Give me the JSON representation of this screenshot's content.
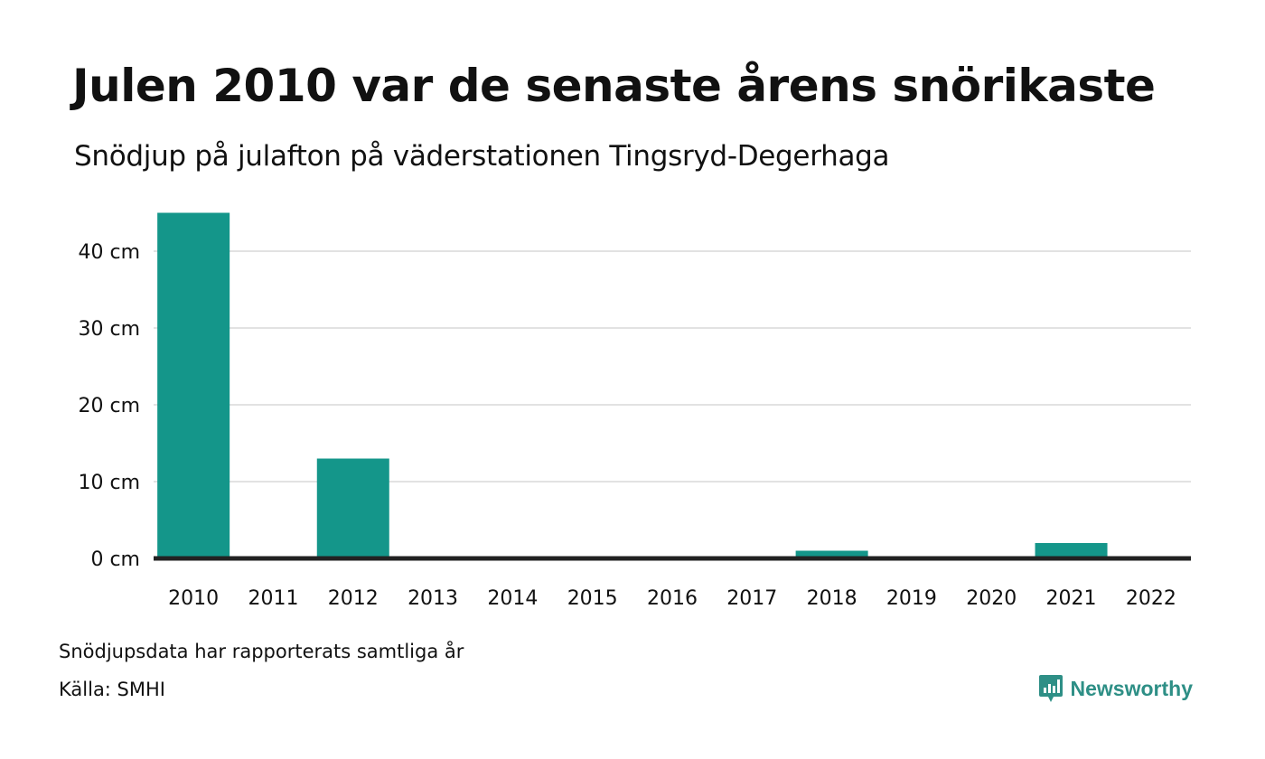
{
  "title": "Julen 2010 var de senaste årens snörikaste",
  "subtitle": "Snödjup på julafton på väderstationen Tingsryd-Degerhaga",
  "note": "Snödjupsdata har rapporterats samtliga år",
  "source": "Källa: SMHI",
  "brand": {
    "name": "Newsworthy",
    "logo_icon": "bar-chart-speech-bubble-icon",
    "color": "#2e8f86"
  },
  "chart_data": {
    "type": "bar",
    "categories": [
      "2010",
      "2011",
      "2012",
      "2013",
      "2014",
      "2015",
      "2016",
      "2017",
      "2018",
      "2019",
      "2020",
      "2021",
      "2022"
    ],
    "values": [
      45,
      0,
      13,
      0,
      0,
      0,
      0,
      0,
      1,
      0,
      0,
      2,
      0
    ],
    "unit": "cm",
    "y_ticks": [
      0,
      10,
      20,
      30,
      40
    ],
    "y_tick_labels": [
      "0 cm",
      "10 cm",
      "20 cm",
      "30 cm",
      "40 cm"
    ],
    "ylim": [
      0,
      45
    ],
    "grid": true,
    "bar_color": "#14968a",
    "grid_color": "#e2e2e2",
    "baseline_color": "#222222"
  }
}
